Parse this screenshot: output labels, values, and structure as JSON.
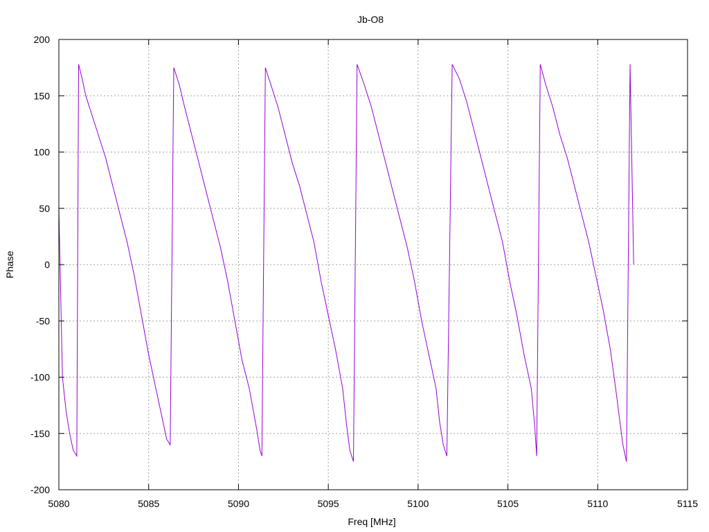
{
  "chart_data": {
    "type": "line",
    "title": "Jb-O8",
    "xlabel": "Freq [MHz]",
    "ylabel": "Phase",
    "xlim": [
      5080,
      5115
    ],
    "ylim": [
      -200,
      200
    ],
    "xticks": [
      5080,
      5085,
      5090,
      5095,
      5100,
      5105,
      5110,
      5115
    ],
    "yticks": [
      -200,
      -150,
      -100,
      -50,
      0,
      50,
      100,
      150,
      200
    ],
    "xtick_labels": [
      "5080",
      "5085",
      "5090",
      "5095",
      "5100",
      "5105",
      "5110",
      "5115"
    ],
    "ytick_labels": [
      "-200",
      "-150",
      "-100",
      "-50",
      "0",
      "50",
      "100",
      "150",
      "200"
    ],
    "grid": true,
    "legend": "none",
    "series_color": "#9400d3",
    "series": [
      {
        "x": [
          5080.0,
          5080.2,
          5080.4,
          5080.6,
          5080.8,
          5081.0,
          5081.1,
          5081.3,
          5081.5,
          5081.8,
          5082.2,
          5082.6,
          5083.0,
          5083.4,
          5083.8,
          5084.2,
          5084.6,
          5085.0,
          5085.4,
          5085.8,
          5086.0,
          5086.2,
          5086.4,
          5086.7,
          5087.0,
          5087.4,
          5087.8,
          5088.2,
          5088.6,
          5089.0,
          5089.4,
          5089.8,
          5090.2,
          5090.6,
          5091.0,
          5091.2,
          5091.3,
          5091.5,
          5091.8,
          5092.2,
          5092.6,
          5093.0,
          5093.4,
          5093.8,
          5094.2,
          5094.6,
          5095.0,
          5095.4,
          5095.8,
          5096.0,
          5096.2,
          5096.4,
          5096.6,
          5097.0,
          5097.4,
          5097.8,
          5098.2,
          5098.6,
          5099.0,
          5099.4,
          5099.8,
          5100.2,
          5100.6,
          5101.0,
          5101.2,
          5101.4,
          5101.6,
          5101.9,
          5102.3,
          5102.7,
          5103.1,
          5103.5,
          5103.9,
          5104.3,
          5104.7,
          5105.1,
          5105.5,
          5105.9,
          5106.3,
          5106.5,
          5106.6,
          5106.8,
          5107.1,
          5107.5,
          5107.9,
          5108.3,
          5108.7,
          5109.1,
          5109.5,
          5109.9,
          5110.3,
          5110.7,
          5111.0,
          5111.2,
          5111.4,
          5111.6,
          5111.8,
          5112.0
        ],
        "y": [
          50,
          -100,
          -130,
          -150,
          -165,
          -170,
          178,
          165,
          150,
          135,
          115,
          95,
          70,
          45,
          20,
          -10,
          -45,
          -80,
          -110,
          -140,
          -155,
          -160,
          175,
          160,
          140,
          115,
          90,
          65,
          40,
          15,
          -15,
          -50,
          -85,
          -110,
          -145,
          -165,
          -170,
          175,
          160,
          140,
          115,
          90,
          70,
          45,
          20,
          -15,
          -45,
          -75,
          -110,
          -140,
          -165,
          -175,
          178,
          160,
          140,
          115,
          90,
          65,
          40,
          15,
          -15,
          -50,
          -80,
          -110,
          -140,
          -160,
          -170,
          178,
          165,
          145,
          120,
          95,
          70,
          45,
          20,
          -15,
          -45,
          -80,
          -110,
          -145,
          -170,
          178,
          160,
          140,
          115,
          95,
          70,
          45,
          20,
          -10,
          -40,
          -75,
          -110,
          -135,
          -160,
          -175,
          178,
          0
        ]
      }
    ]
  }
}
